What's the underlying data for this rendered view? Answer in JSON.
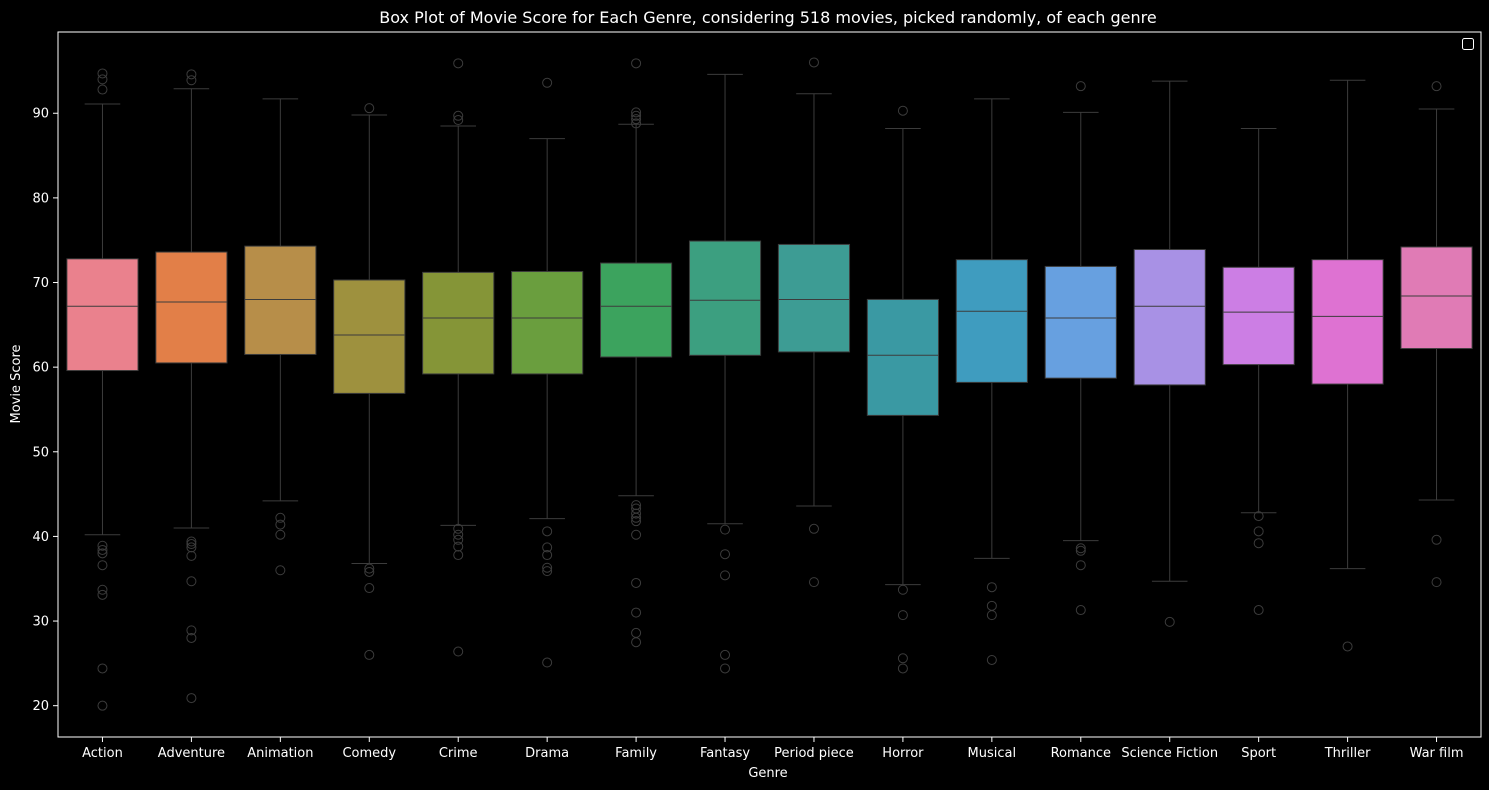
{
  "chart_data": {
    "type": "box",
    "title": "Box Plot of Movie Score for Each Genre, considering 518 movies, picked randomly, of each genre",
    "xlabel": "Genre",
    "ylabel": "Movie Score",
    "ylim": [
      16.3,
      99.6
    ],
    "yticks": [
      20,
      30,
      40,
      50,
      60,
      70,
      80,
      90
    ],
    "grid": false,
    "legend": "top-right (empty)",
    "colors": {
      "background": "#000000",
      "axes": "#ffffff",
      "text": "#ffffff",
      "whisker": "#3c3c3c"
    },
    "categories": [
      "Action",
      "Adventure",
      "Animation",
      "Comedy",
      "Crime",
      "Drama",
      "Family",
      "Fantasy",
      "Period piece",
      "Horror",
      "Musical",
      "Romance",
      "Science Fiction",
      "Sport",
      "Thriller",
      "War film"
    ],
    "boxes": [
      {
        "genre": "Action",
        "color": "#ea818d",
        "whislo": 40.2,
        "q1": 59.6,
        "med": 67.2,
        "q3": 72.8,
        "whishi": 91.1,
        "fliers": [
          94.7,
          94.0,
          92.8,
          38.9,
          38.4,
          38.0,
          36.6,
          33.7,
          33.1,
          24.4,
          20.0
        ]
      },
      {
        "genre": "Adventure",
        "color": "#e27f48",
        "whislo": 41.0,
        "q1": 60.5,
        "med": 67.7,
        "q3": 73.6,
        "whishi": 92.9,
        "fliers": [
          94.6,
          93.9,
          39.4,
          39.1,
          38.7,
          37.7,
          34.7,
          28.9,
          28.0,
          20.9
        ]
      },
      {
        "genre": "Animation",
        "color": "#b78e49",
        "whislo": 44.2,
        "q1": 61.5,
        "med": 68.0,
        "q3": 74.3,
        "whishi": 91.7,
        "fliers": [
          42.2,
          41.4,
          40.2,
          36.0
        ]
      },
      {
        "genre": "Comedy",
        "color": "#9e913e",
        "whislo": 36.8,
        "q1": 56.9,
        "med": 63.8,
        "q3": 70.3,
        "whishi": 89.8,
        "fliers": [
          90.6,
          36.2,
          35.8,
          33.9,
          26.0
        ]
      },
      {
        "genre": "Crime",
        "color": "#859537",
        "whislo": 41.3,
        "q1": 59.2,
        "med": 65.8,
        "q3": 71.2,
        "whishi": 88.5,
        "fliers": [
          95.9,
          89.7,
          89.2,
          40.9,
          40.2,
          39.6,
          38.8,
          37.8,
          26.4
        ]
      },
      {
        "genre": "Drama",
        "color": "#6a9e3e",
        "whislo": 42.1,
        "q1": 59.2,
        "med": 65.8,
        "q3": 71.3,
        "whishi": 87.0,
        "fliers": [
          93.6,
          40.6,
          38.7,
          37.8,
          36.3,
          35.9,
          25.1
        ]
      },
      {
        "genre": "Family",
        "color": "#3ca35e",
        "whislo": 44.8,
        "q1": 61.2,
        "med": 67.2,
        "q3": 72.3,
        "whishi": 88.7,
        "fliers": [
          95.9,
          90.1,
          89.7,
          89.3,
          88.8,
          43.7,
          43.3,
          42.7,
          42.2,
          41.8,
          40.2,
          34.5,
          31.0,
          28.6,
          27.5
        ]
      },
      {
        "genre": "Fantasy",
        "color": "#3c9f80",
        "whislo": 41.5,
        "q1": 61.4,
        "med": 67.9,
        "q3": 74.9,
        "whishi": 94.6,
        "fliers": [
          40.8,
          37.9,
          35.4,
          26.0,
          24.4
        ]
      },
      {
        "genre": "Period piece",
        "color": "#3d9c94",
        "whislo": 43.6,
        "q1": 61.8,
        "med": 68.0,
        "q3": 74.5,
        "whishi": 92.3,
        "fliers": [
          96.0,
          40.9,
          34.6
        ]
      },
      {
        "genre": "Horror",
        "color": "#3a99a3",
        "whislo": 34.3,
        "q1": 54.3,
        "med": 61.4,
        "q3": 68.0,
        "whishi": 88.2,
        "fliers": [
          90.3,
          33.7,
          30.7,
          25.6,
          24.4
        ]
      },
      {
        "genre": "Musical",
        "color": "#3f9cbf",
        "whislo": 37.4,
        "q1": 58.2,
        "med": 66.6,
        "q3": 72.7,
        "whishi": 91.7,
        "fliers": [
          34.0,
          31.8,
          30.7,
          25.4
        ]
      },
      {
        "genre": "Romance",
        "color": "#67a0e0",
        "whislo": 39.5,
        "q1": 58.7,
        "med": 65.8,
        "q3": 71.9,
        "whishi": 90.1,
        "fliers": [
          93.2,
          38.6,
          38.3,
          36.6,
          31.3
        ]
      },
      {
        "genre": "Science Fiction",
        "color": "#a891e5",
        "whislo": 34.7,
        "q1": 57.9,
        "med": 67.2,
        "q3": 73.9,
        "whishi": 93.8,
        "fliers": [
          29.9
        ]
      },
      {
        "genre": "Sport",
        "color": "#cc7ee4",
        "whislo": 42.8,
        "q1": 60.3,
        "med": 66.5,
        "q3": 71.8,
        "whishi": 88.2,
        "fliers": [
          42.4,
          40.6,
          39.2,
          31.3
        ]
      },
      {
        "genre": "Thriller",
        "color": "#de72d2",
        "whislo": 36.2,
        "q1": 58.0,
        "med": 66.0,
        "q3": 72.7,
        "whishi": 93.9,
        "fliers": [
          27.0
        ]
      },
      {
        "genre": "War film",
        "color": "#e07bb5",
        "whislo": 44.3,
        "q1": 62.2,
        "med": 68.4,
        "q3": 74.2,
        "whishi": 90.5,
        "fliers": [
          93.2,
          39.6,
          34.6
        ]
      }
    ]
  }
}
